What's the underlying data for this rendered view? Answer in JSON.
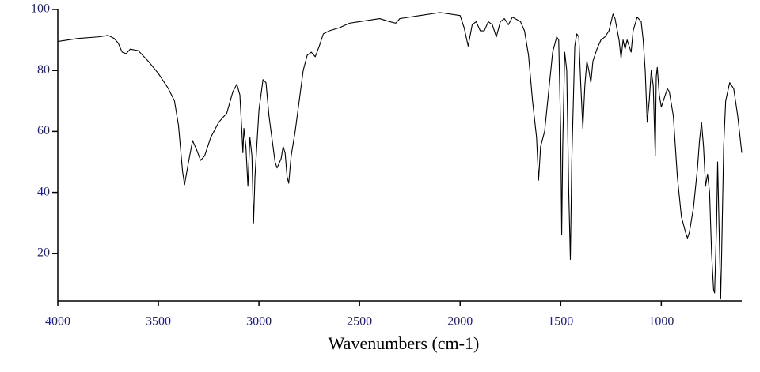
{
  "chart_data": {
    "type": "line",
    "xlabel": "Wavenumbers (cm-1)",
    "xlim": [
      4000,
      600
    ],
    "ylim": [
      4.4,
      100
    ],
    "xticks": [
      4000,
      3500,
      3000,
      2500,
      2000,
      1500,
      1000
    ],
    "yticks": [
      20,
      40,
      60,
      80,
      100
    ],
    "x": [
      4000,
      3900,
      3800,
      3750,
      3720,
      3700,
      3680,
      3660,
      3640,
      3600,
      3550,
      3500,
      3450,
      3420,
      3400,
      3380,
      3370,
      3350,
      3330,
      3310,
      3290,
      3270,
      3240,
      3200,
      3160,
      3130,
      3110,
      3095,
      3085,
      3080,
      3075,
      3065,
      3055,
      3045,
      3035,
      3027,
      3020,
      3000,
      2980,
      2965,
      2950,
      2920,
      2910,
      2890,
      2880,
      2870,
      2860,
      2852,
      2840,
      2820,
      2800,
      2780,
      2760,
      2740,
      2720,
      2700,
      2680,
      2650,
      2600,
      2550,
      2500,
      2400,
      2350,
      2320,
      2300,
      2200,
      2100,
      2000,
      1980,
      1960,
      1940,
      1920,
      1900,
      1880,
      1860,
      1840,
      1820,
      1800,
      1780,
      1760,
      1740,
      1700,
      1680,
      1660,
      1640,
      1620,
      1610,
      1600,
      1580,
      1560,
      1540,
      1520,
      1510,
      1500,
      1495,
      1490,
      1480,
      1470,
      1460,
      1452,
      1445,
      1430,
      1420,
      1410,
      1400,
      1390,
      1380,
      1370,
      1360,
      1350,
      1340,
      1320,
      1300,
      1280,
      1260,
      1240,
      1230,
      1210,
      1200,
      1190,
      1180,
      1170,
      1160,
      1150,
      1140,
      1120,
      1100,
      1090,
      1080,
      1070,
      1060,
      1050,
      1040,
      1030,
      1025,
      1020,
      1010,
      1000,
      990,
      970,
      960,
      940,
      920,
      900,
      880,
      870,
      860,
      840,
      820,
      810,
      800,
      790,
      780,
      770,
      760,
      750,
      740,
      735,
      725,
      720,
      715,
      705,
      700,
      690,
      680,
      660,
      640,
      620,
      600
    ],
    "series": [
      {
        "color": "#000000",
        "values": [
          89.5,
          90.5,
          91,
          91.5,
          90.5,
          89,
          86,
          85.5,
          87,
          86.5,
          83,
          79,
          74,
          70,
          62,
          47,
          42.5,
          50,
          57,
          54,
          50.5,
          52,
          58,
          63,
          66,
          73,
          75.5,
          72,
          60,
          53,
          61,
          55,
          42,
          58,
          52,
          30,
          45,
          67,
          77,
          76,
          65,
          50,
          48,
          51,
          55,
          53,
          45,
          43,
          52,
          60,
          70,
          80,
          85,
          86,
          84.5,
          88,
          92,
          93,
          94,
          95.5,
          96,
          97,
          96,
          95.5,
          97,
          98,
          99,
          98,
          94,
          88,
          95,
          96,
          93,
          93,
          96,
          95,
          91,
          96,
          97,
          95,
          97.5,
          96,
          93,
          85,
          70,
          58,
          44,
          55,
          60,
          73,
          86,
          91,
          90,
          60,
          26,
          55,
          86,
          80,
          40,
          18,
          50,
          88,
          92,
          91,
          75,
          61,
          75,
          83,
          80,
          76,
          83,
          87,
          90,
          91,
          93,
          98.5,
          97,
          90,
          84,
          90,
          87,
          90,
          88,
          86,
          93,
          97.5,
          96,
          90,
          80,
          63,
          70,
          80,
          75,
          52,
          78,
          81,
          72,
          68,
          70,
          74,
          73,
          65,
          45,
          32,
          27,
          25,
          27,
          35,
          48,
          57,
          63,
          55,
          42,
          46,
          40,
          20,
          8,
          7,
          30,
          50,
          35,
          5,
          20,
          55,
          70,
          76,
          74,
          65,
          53
        ]
      }
    ]
  }
}
